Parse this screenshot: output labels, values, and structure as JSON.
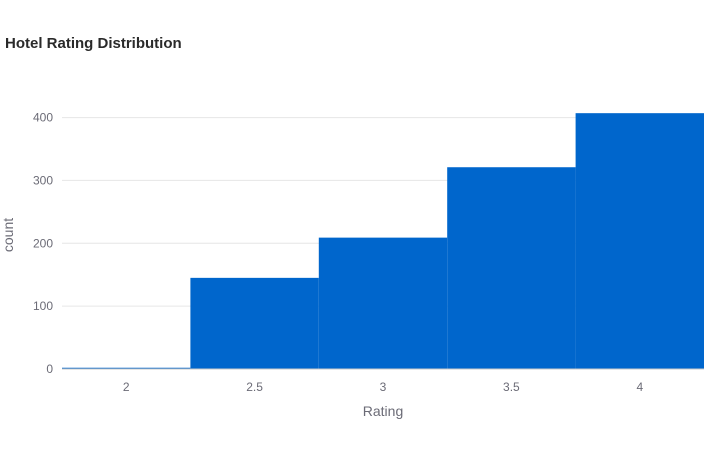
{
  "chart_data": {
    "type": "bar",
    "title": "Hotel Rating Distribution",
    "xlabel": "Rating",
    "ylabel": "count",
    "categories": [
      "2",
      "2.5",
      "3",
      "3.5",
      "4"
    ],
    "values": [
      2,
      145,
      209,
      321,
      407
    ],
    "ylim": [
      0,
      420
    ],
    "yticks": [
      0,
      100,
      200,
      300,
      400
    ],
    "grid": true,
    "legend": "none",
    "bar_color": "#0066cc",
    "histogram": true
  }
}
